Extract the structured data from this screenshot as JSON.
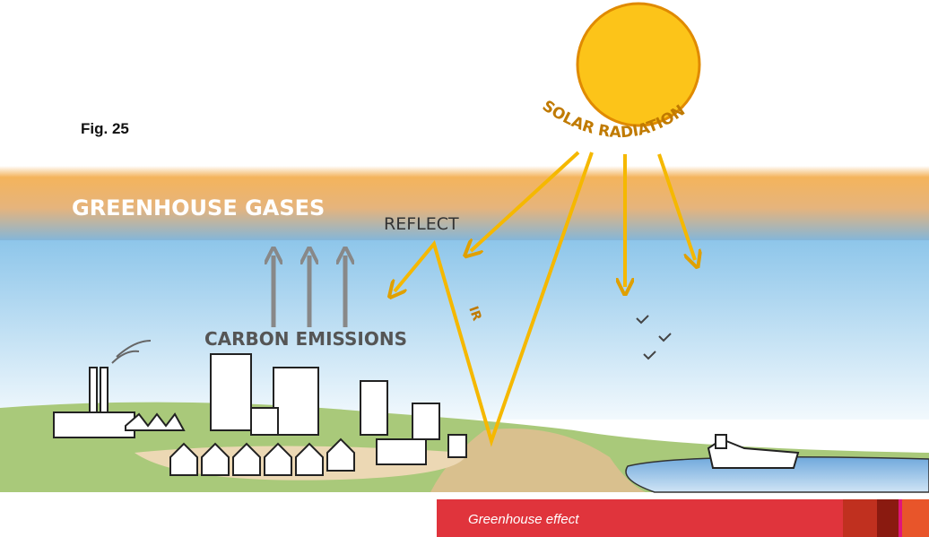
{
  "figure_label": "Fig. 25",
  "labels": {
    "solar_radiation": "SOLAR RADIATION",
    "greenhouse_gases": "GREENHOUSE GASES",
    "reflect": "REFLECT",
    "ir": "IR",
    "carbon_emissions": "CARBON EMISSIONS"
  },
  "caption": "Greenhouse effect"
}
